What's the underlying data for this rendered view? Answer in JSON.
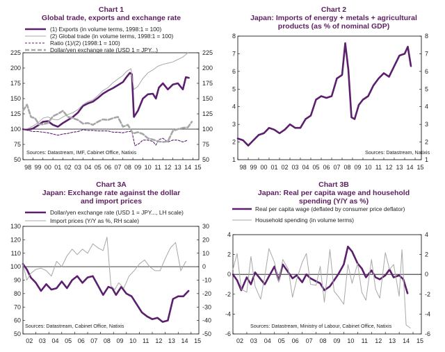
{
  "chart_data": [
    {
      "id": "chart1",
      "type": "line",
      "label": "Chart 1",
      "title": "Global trade, exports and exchange rate",
      "x_ticks": [
        "98",
        "99",
        "00",
        "01",
        "02",
        "03",
        "04",
        "05",
        "06",
        "07",
        "08",
        "09",
        "10",
        "11",
        "12",
        "13",
        "14",
        "15"
      ],
      "xlim": [
        1998,
        2015.6
      ],
      "ylim_left": [
        50,
        225
      ],
      "ylim_right": [
        50,
        225
      ],
      "y_ticks_left": [
        "50",
        "75",
        "100",
        "125",
        "150",
        "175",
        "200",
        "225"
      ],
      "y_ticks_right": [
        "50",
        "75",
        "100",
        "125",
        "150",
        "175",
        "200",
        "225"
      ],
      "reference_line": 100,
      "source": "Sources: Datastream, IMF, Cabinet Office, Natixis",
      "series": [
        {
          "name": "(1) Exports (in volume terms, 1998:1 = 100)",
          "color": "#5b1f6e",
          "style": "thick",
          "x": [
            1998,
            1998.5,
            1999,
            1999.5,
            2000,
            2000.5,
            2001,
            2001.5,
            2002,
            2002.5,
            2003,
            2003.5,
            2004,
            2004.5,
            2005,
            2005.5,
            2006,
            2006.5,
            2007,
            2007.5,
            2008,
            2008.3,
            2008.7,
            2008.9,
            2009.1,
            2009.5,
            2010,
            2010.5,
            2011,
            2011.3,
            2011.6,
            2012,
            2012.5,
            2013,
            2013.5,
            2014,
            2014.3,
            2014.6
          ],
          "y": [
            100,
            99,
            101,
            106,
            112,
            113,
            107,
            104,
            110,
            115,
            120,
            127,
            138,
            142,
            145,
            151,
            158,
            163,
            167,
            172,
            177,
            184,
            192,
            190,
            120,
            130,
            150,
            157,
            158,
            150,
            168,
            175,
            165,
            173,
            175,
            165,
            185,
            184
          ]
        },
        {
          "name": "(2) Global trade (in volume terms, 1998:1 = 100)",
          "color": "#a7a7a7",
          "style": "thin",
          "x": [
            1998,
            1998.5,
            1999,
            1999.5,
            2000,
            2000.5,
            2001,
            2001.5,
            2002,
            2002.5,
            2003,
            2003.5,
            2004,
            2004.5,
            2005,
            2005.5,
            2006,
            2006.5,
            2007,
            2007.5,
            2008,
            2008.4,
            2008.8,
            2009.1,
            2009.5,
            2010,
            2010.5,
            2011,
            2011.5,
            2012,
            2012.5,
            2013,
            2013.5,
            2014,
            2014.5
          ],
          "y": [
            100,
            101,
            105,
            110,
            118,
            120,
            116,
            115,
            120,
            124,
            127,
            132,
            140,
            145,
            148,
            155,
            163,
            168,
            176,
            182,
            188,
            195,
            199,
            165,
            170,
            183,
            192,
            197,
            203,
            206,
            208,
            210,
            214,
            218,
            225
          ]
        },
        {
          "name": "Ratio (1)/(2) (1998:1 = 100)",
          "color": "#5b1f6e",
          "style": "dashed",
          "x": [
            1998,
            1998.5,
            1999,
            1999.5,
            2000,
            2000.5,
            2001,
            2001.5,
            2002,
            2002.5,
            2003,
            2003.5,
            2004,
            2004.5,
            2005,
            2005.5,
            2006,
            2006.5,
            2007,
            2007.5,
            2008,
            2008.5,
            2008.9,
            2009.2,
            2009.6,
            2010,
            2010.5,
            2011,
            2011.3,
            2011.6,
            2012,
            2012.5,
            2013,
            2013.5,
            2014,
            2014.5
          ],
          "y": [
            100,
            98,
            96,
            96,
            95,
            94,
            92,
            90,
            92,
            93,
            95,
            96,
            99,
            98,
            98,
            97,
            97,
            97,
            95,
            95,
            94,
            96,
            96,
            73,
            76,
            82,
            82,
            80,
            74,
            83,
            85,
            79,
            82,
            82,
            79,
            82
          ]
        },
        {
          "name": "Dollar/yen exchange rate (USD 1 = JPY...)",
          "color": "#a7a7a7",
          "style": "thick-dashed",
          "x": [
            1998,
            1998.4,
            1998.8,
            1999.2,
            1999.6,
            2000,
            2000.5,
            2001,
            2001.5,
            2002,
            2002.5,
            2003,
            2003.5,
            2004,
            2004.5,
            2005,
            2005.5,
            2006,
            2006.5,
            2007,
            2007.5,
            2008,
            2008.5,
            2009,
            2009.5,
            2010,
            2010.5,
            2011,
            2011.5,
            2012,
            2012.5,
            2013,
            2013.5,
            2014,
            2014.5,
            2014.9
          ],
          "y": [
            130,
            140,
            120,
            118,
            108,
            108,
            110,
            121,
            125,
            130,
            120,
            118,
            115,
            109,
            110,
            107,
            112,
            116,
            115,
            118,
            120,
            104,
            107,
            93,
            95,
            92,
            85,
            83,
            80,
            79,
            80,
            97,
            100,
            102,
            103,
            112
          ]
        }
      ]
    },
    {
      "id": "chart2",
      "type": "line",
      "label": "Chart 2",
      "title": "Japan: Imports of energy + metals + agricultural products (as % of nominal GDP)",
      "title_lines": [
        "Japan: Imports of energy + metals + agricultural",
        "products (as % of nominal GDP)"
      ],
      "x_ticks": [
        "98",
        "99",
        "00",
        "01",
        "02",
        "03",
        "04",
        "05",
        "06",
        "07",
        "08",
        "09",
        "10",
        "11",
        "12",
        "13",
        "14",
        "15"
      ],
      "xlim": [
        1998,
        2015.6
      ],
      "ylim_left": [
        1,
        8
      ],
      "ylim_right": [
        1,
        8
      ],
      "y_ticks_left": [
        "1",
        "2",
        "3",
        "4",
        "5",
        "6",
        "7",
        "8"
      ],
      "y_ticks_right": [
        "1",
        "2",
        "3",
        "4",
        "5",
        "6",
        "7",
        "8"
      ],
      "source": "Sources: Datastream, Natixis",
      "series": [
        {
          "name": "Imports of energy + metals + agricultural products (% of nominal GDP)",
          "color": "#5b1f6e",
          "style": "thick",
          "x": [
            1998,
            1998.5,
            1999,
            1999.5,
            2000,
            2000.5,
            2001,
            2001.5,
            2002,
            2002.5,
            2003,
            2003.5,
            2004,
            2004.5,
            2005,
            2005.5,
            2006,
            2006.5,
            2007,
            2007.5,
            2008,
            2008.3,
            2008.6,
            2008.9,
            2009.2,
            2009.6,
            2010,
            2010.5,
            2011,
            2011.5,
            2012,
            2012.5,
            2013,
            2013.5,
            2014,
            2014.3,
            2014.6
          ],
          "y": [
            2.2,
            2.1,
            1.8,
            2.1,
            2.4,
            2.5,
            2.8,
            2.7,
            2.5,
            2.7,
            3.0,
            2.8,
            2.8,
            3.3,
            3.5,
            4.4,
            4.6,
            4.5,
            4.6,
            5.6,
            5.8,
            7.6,
            6.1,
            3.4,
            3.3,
            4.1,
            4.4,
            4.6,
            5.2,
            5.6,
            5.9,
            5.7,
            6.3,
            6.9,
            7.0,
            7.4,
            6.3
          ]
        }
      ]
    },
    {
      "id": "chart3a",
      "type": "line",
      "label": "Chart 3A",
      "title": "Japan: Exchange rate against the dollar and import prices",
      "title_lines": [
        "Japan: Exchange rate against the dollar",
        "and import prices"
      ],
      "x_ticks": [
        "02",
        "03",
        "04",
        "05",
        "06",
        "07",
        "08",
        "09",
        "10",
        "11",
        "12",
        "13",
        "14",
        "15"
      ],
      "xlim": [
        2002,
        2015.6
      ],
      "ylim_left": [
        50,
        130
      ],
      "ylim_right": [
        -50,
        30
      ],
      "y_ticks_left": [
        "50",
        "60",
        "70",
        "80",
        "90",
        "100",
        "110",
        "120",
        "130"
      ],
      "y_ticks_right": [
        "-50",
        "-40",
        "-30",
        "-20",
        "-10",
        "0",
        "10",
        "20",
        "30"
      ],
      "reference_line": 100,
      "source": "Sources: Datastream, Cabinet Office, Natixis",
      "series": [
        {
          "name": "Dollar/yen exchange rate (USD 1 = JPY..., LH scale)",
          "color": "#5b1f6e",
          "style": "thick",
          "axis": "left",
          "x": [
            2002,
            2002.3,
            2002.6,
            2003,
            2003.4,
            2003.8,
            2004.2,
            2004.6,
            2005,
            2005.4,
            2005.8,
            2006.2,
            2006.6,
            2007,
            2007.4,
            2007.8,
            2008.2,
            2008.6,
            2008.9,
            2009.2,
            2009.6,
            2010,
            2010.4,
            2010.8,
            2011.2,
            2011.6,
            2012,
            2012.4,
            2012.8,
            2013.2,
            2013.6,
            2014,
            2014.4,
            2014.8
          ],
          "y": [
            102,
            98,
            92,
            88,
            82,
            87,
            83,
            84,
            89,
            84,
            90,
            93,
            88,
            92,
            93,
            86,
            79,
            85,
            84,
            79,
            85,
            80,
            78,
            72,
            66,
            63,
            61,
            62,
            59,
            60,
            76,
            78,
            78,
            82
          ]
        },
        {
          "name": "Import prices (Y/Y as %, RH scale)",
          "color": "#a7a7a7",
          "style": "thin",
          "axis": "right",
          "x": [
            2002,
            2002.3,
            2002.6,
            2003,
            2003.4,
            2003.8,
            2004.2,
            2004.6,
            2005,
            2005.4,
            2005.8,
            2006.2,
            2006.6,
            2007,
            2007.4,
            2007.8,
            2008.2,
            2008.5,
            2008.8,
            2009.1,
            2009.4,
            2009.8,
            2010.2,
            2010.6,
            2011,
            2011.4,
            2011.8,
            2012.2,
            2012.6,
            2013,
            2013.4,
            2013.8,
            2014.2,
            2014.6
          ],
          "y": [
            2,
            -10,
            -5,
            -2,
            -1,
            -3,
            -7,
            4,
            0,
            8,
            13,
            9,
            13,
            10,
            17,
            14,
            12,
            22,
            -14,
            -17,
            -12,
            -16,
            -7,
            -3,
            2,
            5,
            0,
            -3,
            -3,
            6,
            14,
            18,
            -3,
            4
          ]
        }
      ]
    },
    {
      "id": "chart3b",
      "type": "line",
      "label": "Chart 3B",
      "title": "Japan: Real per capita wage and household spending (Y/Y as %)",
      "title_lines": [
        "Japan: Real per capita wage and household",
        "spending (Y/Y as %)"
      ],
      "x_ticks": [
        "02",
        "03",
        "04",
        "05",
        "06",
        "07",
        "08",
        "09",
        "10",
        "11",
        "12",
        "13",
        "14",
        "15"
      ],
      "xlim": [
        2002,
        2015.6
      ],
      "ylim_left": [
        -6,
        4
      ],
      "ylim_right": [
        -6,
        4
      ],
      "y_ticks_left": [
        "-6",
        "-4",
        "-2",
        "0",
        "2",
        "4"
      ],
      "y_ticks_right": [
        "-6",
        "-4",
        "-2",
        "0",
        "2",
        "4"
      ],
      "reference_line": 0,
      "source": "Sources: Datastream, Ministry of Labour, Cabinet Office, Natixis",
      "series": [
        {
          "name": "Real per capita wage (deflated by consumer price deflator)",
          "color": "#5b1f6e",
          "style": "thick",
          "x": [
            2002,
            2002.3,
            2002.6,
            2003,
            2003.3,
            2003.6,
            2004,
            2004.3,
            2004.6,
            2005,
            2005.3,
            2005.6,
            2006,
            2006.3,
            2006.6,
            2007,
            2007.3,
            2007.6,
            2008,
            2008.3,
            2008.6,
            2009,
            2009.3,
            2009.6,
            2010,
            2010.3,
            2010.6,
            2011,
            2011.3,
            2011.6,
            2012,
            2012.3,
            2012.6,
            2013,
            2013.3,
            2013.6,
            2014,
            2014.3,
            2014.6
          ],
          "y": [
            0,
            -0.6,
            -1.6,
            -0.3,
            -1.0,
            0.2,
            -0.5,
            -1.0,
            -0.2,
            0.8,
            -0.6,
            1.0,
            0.2,
            -0.4,
            -0.1,
            -0.8,
            0,
            -0.4,
            -0.7,
            -0.9,
            -1.6,
            -1.2,
            -0.6,
            0,
            1.0,
            2.8,
            2.3,
            1.1,
            0.6,
            -0.3,
            0.4,
            -0.3,
            -0.5,
            -0.1,
            0.5,
            -0.3,
            -0.1,
            -0.5,
            -1.9
          ]
        },
        {
          "name": "Household spending (in volume terms)",
          "color": "#a7a7a7",
          "style": "thin",
          "x": [
            2002,
            2002.3,
            2002.6,
            2003,
            2003.3,
            2003.6,
            2004,
            2004.3,
            2004.6,
            2005,
            2005.3,
            2005.6,
            2006,
            2006.3,
            2006.6,
            2007,
            2007.3,
            2007.6,
            2008,
            2008.3,
            2008.6,
            2009,
            2009.3,
            2009.6,
            2010,
            2010.3,
            2010.6,
            2011,
            2011.3,
            2011.6,
            2012,
            2012.3,
            2012.6,
            2013,
            2013.3,
            2013.6,
            2014,
            2014.2,
            2014.5,
            2014.8
          ],
          "y": [
            0.5,
            2.1,
            -1.5,
            -1.8,
            1.8,
            -1.2,
            -2.5,
            -0.2,
            2.6,
            1.2,
            -0.8,
            1.5,
            0.5,
            -2.3,
            -0.5,
            1.2,
            2.1,
            -1.0,
            -1.1,
            0.8,
            -2.8,
            2.5,
            -1.7,
            -2.2,
            -3.0,
            1.0,
            -0.9,
            1.1,
            -1.8,
            -2.6,
            1.5,
            -1.5,
            -2.4,
            2.2,
            0.5,
            1.0,
            -2.2,
            2.5,
            -5.1,
            -5.4
          ]
        }
      ]
    }
  ]
}
